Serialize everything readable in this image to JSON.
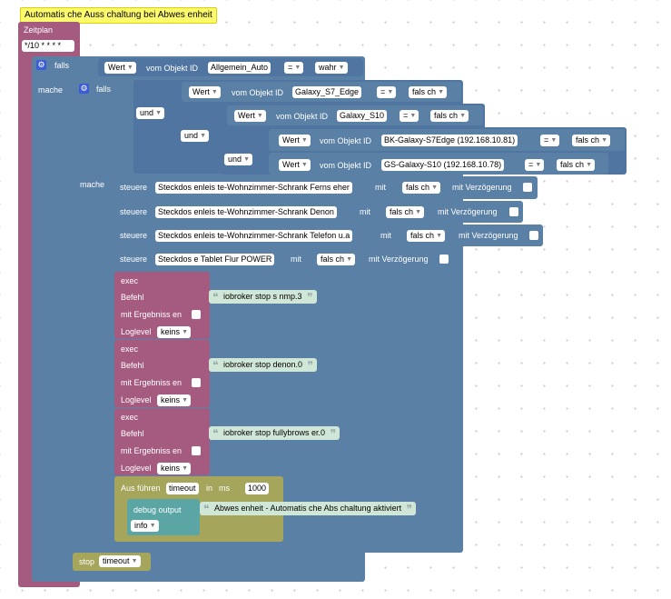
{
  "title": "Automatis che Auss chaltung bei Abwes enheit",
  "zeitplan": {
    "label": "Zeitplan",
    "cron": "*/10 * * * *"
  },
  "if1": {
    "falls": "falls",
    "wert": "Wert",
    "vom": "vom Objekt ID",
    "id": "Allgemein_Auto",
    "op": "=",
    "val": "wahr",
    "mache": "mache"
  },
  "if2": {
    "falls": "falls",
    "und1": "und",
    "und2": "und",
    "und3": "und",
    "c1": {
      "wert": "Wert",
      "vom": "vom Objekt ID",
      "id": "Galaxy_S7_Edge",
      "op": "=",
      "val": "fals ch"
    },
    "c2": {
      "wert": "Wert",
      "vom": "vom Objekt ID",
      "id": "Galaxy_S10",
      "op": "=",
      "val": "fals ch"
    },
    "c3": {
      "wert": "Wert",
      "vom": "vom Objekt ID",
      "id": "BK-Galaxy-S7Edge (192.168.10.81)",
      "op": "=",
      "val": "fals ch"
    },
    "c4": {
      "wert": "Wert",
      "vom": "vom Objekt ID",
      "id": "GS-Galaxy-S10 (192.168.10.78)",
      "op": "=",
      "val": "fals ch"
    },
    "mache": "mache"
  },
  "steuere": [
    {
      "label": "steuere",
      "target": "Steckdos enleis te-Wohnzimmer-Schrank Ferns eher",
      "mit": "mit",
      "val": "fals ch",
      "delay": "mit Verzögerung"
    },
    {
      "label": "steuere",
      "target": "Steckdos enleis te-Wohnzimmer-Schrank Denon",
      "mit": "mit",
      "val": "fals ch",
      "delay": "mit Verzögerung"
    },
    {
      "label": "steuere",
      "target": "Steckdos enleis te-Wohnzimmer-Schrank  Telefon u.a",
      "mit": "mit",
      "val": "fals ch",
      "delay": "mit Verzögerung"
    },
    {
      "label": "steuere",
      "target": "Steckdos e Tablet Flur POWER",
      "mit": "mit",
      "val": "fals ch",
      "delay": "mit Verzögerung"
    }
  ],
  "exec": [
    {
      "exec": "exec",
      "befehl": "Befehl",
      "cmd": "iobroker stop s nmp.3",
      "results": "mit Ergebniss en",
      "loglevel": "Loglevel",
      "level": "keins"
    },
    {
      "exec": "exec",
      "befehl": "Befehl",
      "cmd": "iobroker stop denon.0",
      "results": "mit Ergebniss en",
      "loglevel": "Loglevel",
      "level": "keins"
    },
    {
      "exec": "exec",
      "befehl": "Befehl",
      "cmd": "iobroker stop fullybrows er.0",
      "results": "mit Ergebniss en",
      "loglevel": "Loglevel",
      "level": "keins"
    }
  ],
  "timeout": {
    "label": "Aus führen",
    "name": "timeout",
    "in": "in",
    "ms": "ms",
    "value": "1000"
  },
  "debug": {
    "label": "debug output",
    "text": "Abwes enheit - Automatis che Abs chaltung aktiviert",
    "level": "info"
  },
  "stop": {
    "label": "stop",
    "name": "timeout"
  },
  "colors": {
    "schedule": "#a55b80",
    "logic": "#5b80a5",
    "timeout": "#a5a55b",
    "debug": "#5ba5a5",
    "header": "#fdfa6e"
  }
}
